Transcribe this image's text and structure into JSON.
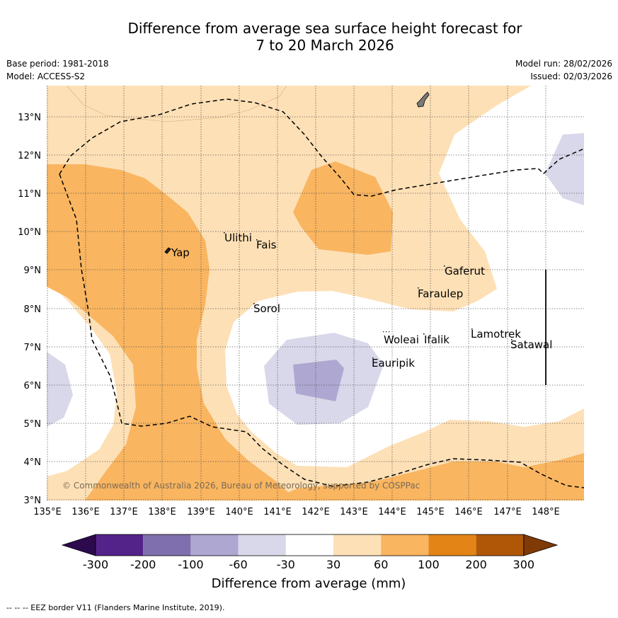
{
  "title_line1": "Difference from average sea surface height forecast for",
  "title_line2": "7 to 20 March 2026",
  "base_period": "Base period: 1981-2018",
  "model": "Model: ACCESS-S2",
  "model_run": "Model run: 28/02/2026",
  "issued": "Issued: 02/03/2026",
  "lat_labels": [
    "13°N",
    "12°N",
    "11°N",
    "10°N",
    "9°N",
    "8°N",
    "7°N",
    "6°N",
    "5°N",
    "4°N",
    "3°N"
  ],
  "lon_labels": [
    "135°E",
    "136°E",
    "137°E",
    "138°E",
    "139°E",
    "140°E",
    "141°E",
    "142°E",
    "143°E",
    "144°E",
    "145°E",
    "146°E",
    "147°E",
    "148°E"
  ],
  "places": {
    "yap": "Yap",
    "ulithi": "Ulithi",
    "fais": "Fais",
    "sorol": "Sorol",
    "gaferut": "Gaferut",
    "faraulep": "Faraulep",
    "woleai": "Woleai",
    "ifalik": "Ifalik",
    "eauripik": "Eauripik",
    "lamotrek": "Lamotrek",
    "satawal": "Satawal"
  },
  "copyright": "© Commonwealth of Australia 2026, Bureau of Meteorology, supported by COSPPac",
  "colorbar": {
    "ticks": [
      "-300",
      "-200",
      "-100",
      "-60",
      "-30",
      "30",
      "60",
      "100",
      "200",
      "300"
    ],
    "title": "Difference from average (mm)",
    "colors": {
      "below_min": "#2d0a4e",
      "n300_n200": "#54238a",
      "n200_n100": "#7f6fae",
      "n100_n60": "#aea7d1",
      "n60_n30": "#d8d8ea",
      "n30_30": "#ffffff",
      "p30_60": "#fde0b6",
      "p60_100": "#f9b560",
      "p100_200": "#e28416",
      "p200_300": "#b05707",
      "above_max": "#7f3a06"
    }
  },
  "footnote": "--  --  -- EEZ border V11 (Flanders Marine Institute, 2019)."
}
